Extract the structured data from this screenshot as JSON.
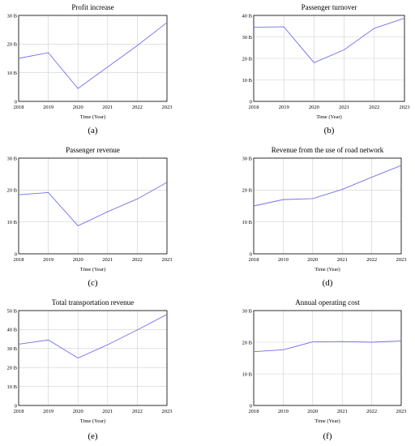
{
  "chart_data": [
    {
      "type": "line",
      "title": "Profit increase",
      "xlabel": "Time (Year)",
      "ylabel": "",
      "x": [
        2018,
        2019,
        2020,
        2021,
        2022,
        2023
      ],
      "values": [
        15,
        17,
        4.5,
        12,
        19.5,
        27.5
      ],
      "ylim": [
        0,
        30
      ],
      "yticks": [
        0,
        10,
        20,
        30
      ],
      "ytick_labels": [
        "0",
        "10 B",
        "20 B",
        "30 B"
      ],
      "caption": "(a)",
      "grid": true
    },
    {
      "type": "line",
      "title": "Passenger turnover",
      "xlabel": "Time (Year)",
      "ylabel": "",
      "x": [
        2018,
        2019,
        2020,
        2021,
        2022,
        2023
      ],
      "values": [
        34.5,
        34.7,
        18,
        24,
        34,
        38.7
      ],
      "ylim": [
        0,
        40
      ],
      "yticks": [
        0,
        10,
        20,
        30,
        40
      ],
      "ytick_labels": [
        "0",
        "10 B",
        "20 B",
        "30 B",
        "40 B"
      ],
      "caption": "(b)",
      "grid": true
    },
    {
      "type": "line",
      "title": "Passenger revenue",
      "xlabel": "Time (Year)",
      "ylabel": "",
      "x": [
        2018,
        2019,
        2020,
        2021,
        2022,
        2023
      ],
      "values": [
        18.5,
        19.2,
        8.8,
        13.2,
        17.2,
        22.4
      ],
      "ylim": [
        0,
        30
      ],
      "yticks": [
        0,
        10,
        20,
        30
      ],
      "ytick_labels": [
        "0",
        "10 B",
        "20 B",
        "30 B"
      ],
      "caption": "(c)",
      "grid": true
    },
    {
      "type": "line",
      "title": "Revenue from the use of road network",
      "xlabel": "Time (Year)",
      "ylabel": "",
      "x": [
        2018,
        2019,
        2020,
        2021,
        2022,
        2023
      ],
      "values": [
        15,
        17,
        17.3,
        20.2,
        24,
        27.7
      ],
      "ylim": [
        0,
        30
      ],
      "yticks": [
        0,
        10,
        20,
        30
      ],
      "ytick_labels": [
        "0",
        "10 B",
        "20 B",
        "30 B"
      ],
      "caption": "(d)",
      "grid": true
    },
    {
      "type": "line",
      "title": "Total transportation revenue",
      "xlabel": "Time (Year)",
      "ylabel": "",
      "x": [
        2018,
        2019,
        2020,
        2021,
        2022,
        2023
      ],
      "values": [
        32.3,
        34.5,
        25,
        32,
        39.8,
        48
      ],
      "ylim": [
        0,
        50
      ],
      "yticks": [
        0,
        10,
        20,
        30,
        40,
        50
      ],
      "ytick_labels": [
        "0",
        "10 B",
        "20 B",
        "30 B",
        "40 B",
        "50 B"
      ],
      "caption": "(e)",
      "grid": true
    },
    {
      "type": "line",
      "title": "Annual operating cost",
      "xlabel": "Time (Year)",
      "ylabel": "",
      "x": [
        2018,
        2019,
        2020,
        2021,
        2022,
        2023
      ],
      "values": [
        17,
        17.6,
        20.1,
        20.2,
        20,
        20.4
      ],
      "ylim": [
        0,
        30
      ],
      "yticks": [
        0,
        10,
        20,
        30
      ],
      "ytick_labels": [
        "0",
        "10 B",
        "20 B",
        "30 B"
      ],
      "caption": "(f)",
      "grid": true
    }
  ],
  "colors": {
    "series_line": "#7070ee",
    "grid": "#d0d0d0",
    "frame": "#000000"
  }
}
